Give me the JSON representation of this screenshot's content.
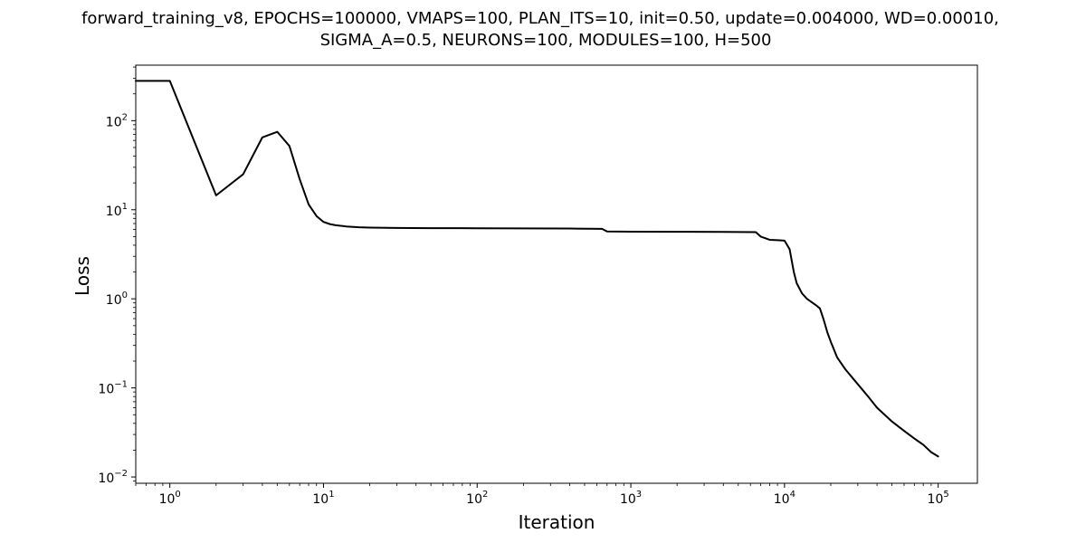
{
  "chart_data": {
    "type": "line",
    "title_lines": [
      "forward_training_v8, EPOCHS=100000, VMAPS=100, PLAN_ITS=10, init=0.50, update=0.004000, WD=0.00010,",
      "SIGMA_A=0.5, NEURONS=100, MODULES=100, H=500"
    ],
    "xlabel": "Iteration",
    "ylabel": "Loss",
    "xscale": "log",
    "yscale": "log",
    "xlim": [
      0.6,
      180000
    ],
    "ylim": [
      0.0085,
      420
    ],
    "x_ticks": [
      {
        "value": 1,
        "base": "10",
        "exp": "0"
      },
      {
        "value": 10,
        "base": "10",
        "exp": "1"
      },
      {
        "value": 100,
        "base": "10",
        "exp": "2"
      },
      {
        "value": 1000,
        "base": "10",
        "exp": "3"
      },
      {
        "value": 10000,
        "base": "10",
        "exp": "4"
      },
      {
        "value": 100000,
        "base": "10",
        "exp": "5"
      }
    ],
    "y_ticks": [
      {
        "value": 0.01,
        "base": "10",
        "exp": "−2"
      },
      {
        "value": 0.1,
        "base": "10",
        "exp": "−1"
      },
      {
        "value": 1,
        "base": "10",
        "exp": "0"
      },
      {
        "value": 10,
        "base": "10",
        "exp": "1"
      },
      {
        "value": 100,
        "base": "10",
        "exp": "2"
      }
    ],
    "grid": false,
    "line_color": "#000000",
    "series": [
      {
        "x": [
          0.6,
          1,
          2,
          3,
          4,
          5,
          6,
          7,
          8,
          9,
          10,
          11,
          12,
          14,
          17,
          20,
          30,
          50,
          100,
          200,
          400,
          650,
          700,
          1000,
          2000,
          4000,
          6500,
          7000,
          8000,
          9000,
          10000,
          10800,
          11500,
          12000,
          13000,
          14000,
          15000,
          16000,
          17000,
          18000,
          19000,
          20000,
          22000,
          25000,
          30000,
          35000,
          40000,
          50000,
          60000,
          70000,
          80000,
          90000,
          100000
        ],
        "y": [
          280,
          280,
          14.5,
          25,
          65,
          75,
          52,
          22,
          11.5,
          8.5,
          7.3,
          6.9,
          6.7,
          6.5,
          6.35,
          6.3,
          6.25,
          6.22,
          6.2,
          6.18,
          6.15,
          6.1,
          5.7,
          5.68,
          5.66,
          5.64,
          5.6,
          5.0,
          4.6,
          4.55,
          4.5,
          3.6,
          2.0,
          1.5,
          1.15,
          1.0,
          0.92,
          0.85,
          0.78,
          0.58,
          0.42,
          0.33,
          0.22,
          0.16,
          0.11,
          0.08,
          0.06,
          0.042,
          0.033,
          0.027,
          0.023,
          0.019,
          0.017
        ]
      }
    ]
  }
}
